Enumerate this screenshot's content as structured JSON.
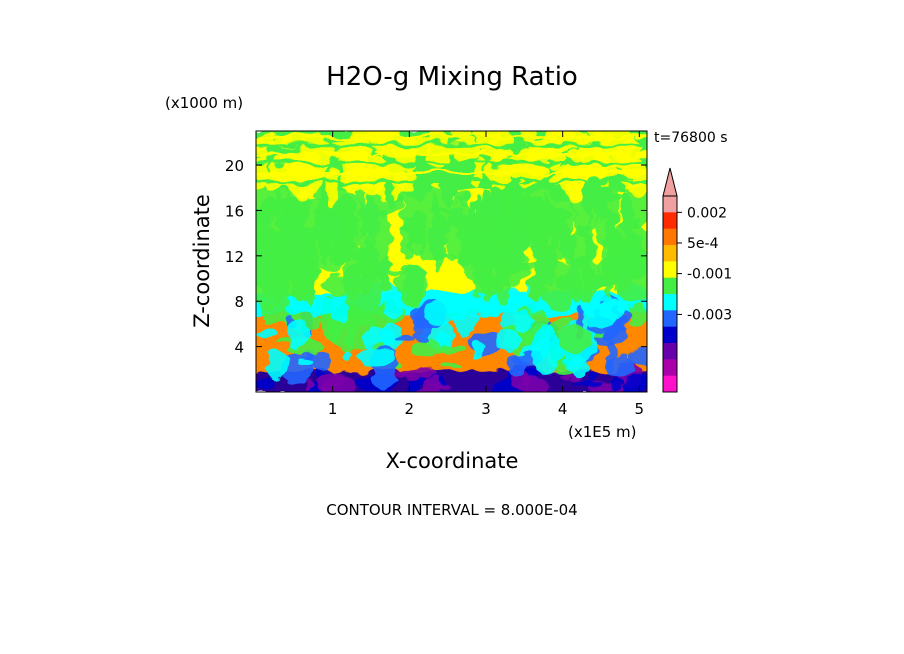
{
  "chart_data": {
    "type": "heatmap",
    "title": "H2O-g Mixing Ratio",
    "xlabel": "X-coordinate",
    "ylabel": "Z-coordinate",
    "x_unit": "(x1E5 m)",
    "y_unit": "(x1000 m)",
    "time_label": "t=76800 s",
    "footer": "CONTOUR INTERVAL = 8.000E-04",
    "xlim": [
      0,
      5.1
    ],
    "ylim": [
      0,
      23
    ],
    "x_ticks": [
      1,
      2,
      3,
      4,
      5
    ],
    "y_ticks": [
      4,
      8,
      12,
      16,
      20
    ],
    "colorbar": {
      "labels": [
        {
          "text": "0.002",
          "value": 0.002
        },
        {
          "text": "5e-4",
          "value": 0.0005
        },
        {
          "text": "-0.001",
          "value": -0.001
        },
        {
          "text": "-0.003",
          "value": -0.003
        }
      ],
      "colors_top_to_bottom": [
        "#f0a0a0",
        "#ff2a00",
        "#ff7700",
        "#ffbb00",
        "#ffff00",
        "#44ee44",
        "#00ffff",
        "#2266ff",
        "#0000cc",
        "#6600aa",
        "#aa00aa",
        "#ff11cc"
      ],
      "extend_top": true
    },
    "bands_bottom_to_top": [
      {
        "z_range": [
          0,
          2
        ],
        "dominant_colors": [
          "#2a0099",
          "#7a00aa",
          "#0000cc"
        ]
      },
      {
        "z_range": [
          2,
          7
        ],
        "dominant_colors": [
          "#ff8800",
          "#2266ff",
          "#00ffff",
          "#44ee44"
        ]
      },
      {
        "z_range": [
          7,
          9
        ],
        "dominant_colors": [
          "#00ffff"
        ]
      },
      {
        "z_range": [
          9,
          18
        ],
        "dominant_colors": [
          "#ffff00",
          "#44ee44"
        ]
      },
      {
        "z_range": [
          18,
          23
        ],
        "dominant_colors": [
          "#44ee44",
          "#ffff00"
        ]
      }
    ]
  }
}
